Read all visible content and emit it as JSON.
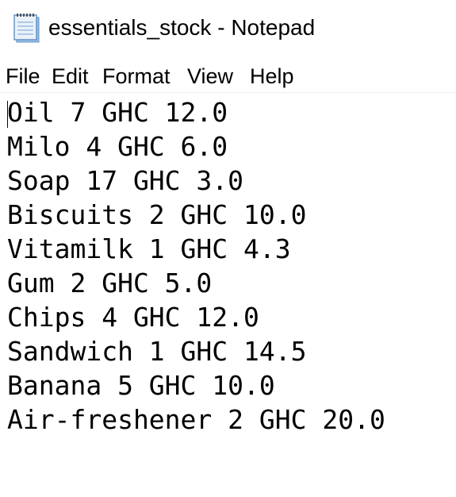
{
  "window": {
    "title": "essentials_stock - Notepad",
    "icon": "notepad-icon"
  },
  "menu": {
    "file": "File",
    "edit": "Edit",
    "format": "Format",
    "view": "View",
    "help": "Help"
  },
  "document": {
    "lines": [
      "Oil 7 GHC 12.0",
      "Milo 4 GHC 6.0",
      "Soap 17 GHC 3.0",
      "Biscuits 2 GHC 10.0",
      "Vitamilk 1 GHC 4.3",
      "Gum 2 GHC 5.0",
      "Chips 4 GHC 12.0",
      "Sandwich 1 GHC 14.5",
      "Banana 5 GHC 10.0",
      "Air-freshener 2 GHC 20.0"
    ]
  }
}
